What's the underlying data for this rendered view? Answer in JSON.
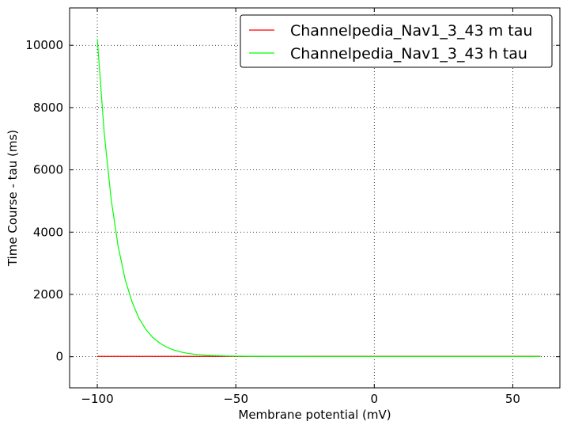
{
  "chart_data": {
    "type": "line",
    "title": "",
    "xlabel": "Membrane potential (mV)",
    "ylabel": "Time Course - tau (ms)",
    "xlim": [
      -110,
      67
    ],
    "ylim": [
      -1000,
      11200
    ],
    "xticks": [
      -100,
      -50,
      0,
      50
    ],
    "xtick_labels": [
      "−100",
      "−50",
      "0",
      "50"
    ],
    "yticks": [
      0,
      2000,
      4000,
      6000,
      8000,
      10000
    ],
    "ytick_labels": [
      "0",
      "2000",
      "4000",
      "6000",
      "8000",
      "10000"
    ],
    "grid": true,
    "legend_position": "top-right",
    "series": [
      {
        "name": "Channelpedia_Nav1_3_43 m tau",
        "color": "#ff0000",
        "x": [
          -100,
          -90,
          -80,
          -70,
          -60,
          -50,
          -40,
          -30,
          -20,
          -10,
          0,
          10,
          20,
          30,
          40,
          50,
          60
        ],
        "y": [
          10,
          10,
          10,
          10,
          10,
          10,
          10,
          10,
          10,
          10,
          10,
          10,
          10,
          10,
          10,
          10,
          10
        ]
      },
      {
        "name": "Channelpedia_Nav1_3_43 h tau",
        "color": "#00ff00",
        "x": [
          -100,
          -97.5,
          -95,
          -92.5,
          -90,
          -87.5,
          -85,
          -82.5,
          -80,
          -77.5,
          -75,
          -72.5,
          -70,
          -67.5,
          -65,
          -62.5,
          -60,
          -57.5,
          -55,
          -52.5,
          -50,
          -45,
          -40,
          -35,
          -30,
          -20,
          -10,
          0,
          10,
          20,
          30,
          40,
          50,
          60
        ],
        "y": [
          10200,
          7180,
          5060,
          3560,
          2500,
          1770,
          1240,
          880,
          620,
          440,
          310,
          220,
          155,
          110,
          80,
          60,
          45,
          35,
          28,
          22,
          18,
          13,
          10,
          8,
          7,
          6,
          5,
          5,
          5,
          5,
          5,
          5,
          5,
          5
        ]
      }
    ]
  }
}
